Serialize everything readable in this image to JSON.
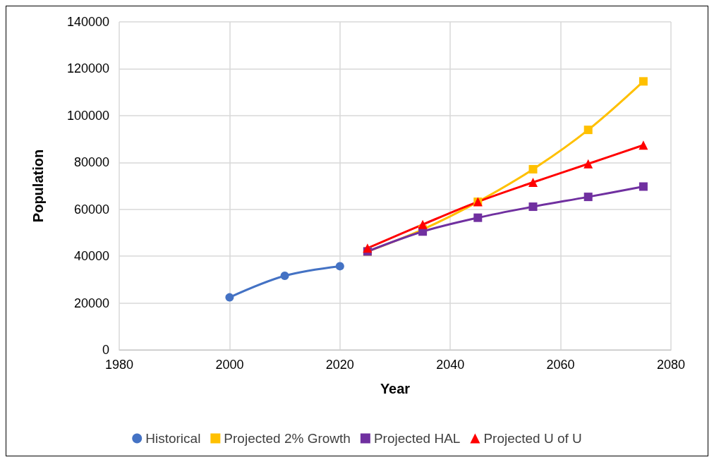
{
  "chart_data": {
    "type": "line",
    "xlabel": "Year",
    "ylabel": "Population",
    "xlim": [
      1980,
      2080
    ],
    "xticks": [
      1980,
      2000,
      2020,
      2040,
      2060,
      2080
    ],
    "ylim": [
      0,
      140000
    ],
    "yticks": [
      0,
      20000,
      40000,
      60000,
      80000,
      100000,
      120000,
      140000
    ],
    "grid": true,
    "legend": "bottom",
    "line_style": "solid",
    "series": [
      {
        "name": "Historical",
        "color": "#4472c4",
        "marker": "circle",
        "x": [
          2000,
          2010,
          2020
        ],
        "values": [
          22400,
          31600,
          35700
        ]
      },
      {
        "name": "Projected 2% Growth",
        "color": "#ffc000",
        "marker": "square",
        "x": [
          2025,
          2035,
          2045,
          2055,
          2065,
          2075
        ],
        "values": [
          42000,
          51400,
          63200,
          77100,
          93900,
          114600
        ]
      },
      {
        "name": "Projected HAL",
        "color": "#7030a0",
        "marker": "square",
        "x": [
          2025,
          2035,
          2045,
          2055,
          2065,
          2075
        ],
        "values": [
          42000,
          50500,
          56400,
          61100,
          65300,
          69700
        ]
      },
      {
        "name": "Projected U of U",
        "color": "#ff0000",
        "marker": "triangle",
        "x": [
          2025,
          2035,
          2045,
          2055,
          2065,
          2075
        ],
        "values": [
          43400,
          53500,
          63200,
          71500,
          79400,
          87400
        ]
      }
    ]
  }
}
